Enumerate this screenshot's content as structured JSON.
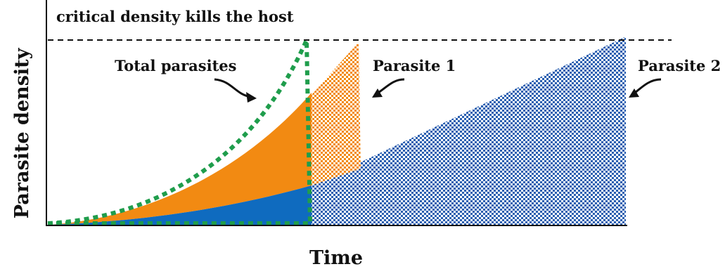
{
  "title_text": "critical density kills the host",
  "y_axis_label": "Parasite density",
  "x_axis_label": "Time",
  "labels": {
    "total": "Total parasites",
    "parasite1": "Parasite 1",
    "parasite2": "Parasite 2"
  },
  "colors": {
    "parasite1": "#f28a12",
    "parasite2": "#0f6bbf",
    "parasite2_pattern": "#2a5fb0",
    "total": "#1f9d4c",
    "threshold": "#111111",
    "axes": "#111111"
  }
}
